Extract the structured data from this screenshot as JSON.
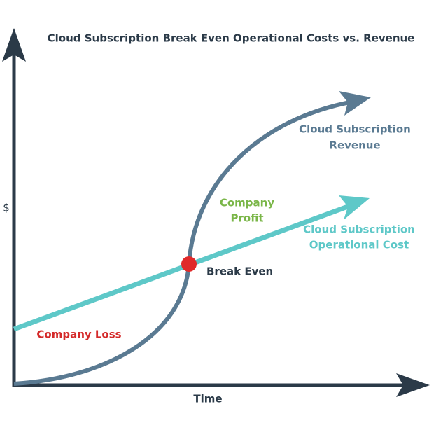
{
  "title": "Cloud Subscription Break Even Operational Costs vs. Revenue",
  "axes": {
    "y_label": "$",
    "x_label": "Time"
  },
  "curves": {
    "revenue": {
      "label": [
        "Cloud Subscription",
        "Revenue"
      ]
    },
    "cost": {
      "label": [
        "Cloud Subscription",
        "Operational Cost"
      ]
    }
  },
  "regions": {
    "profit": [
      "Company",
      "Profit"
    ],
    "loss": "Company Loss"
  },
  "break_even": "Break Even"
}
